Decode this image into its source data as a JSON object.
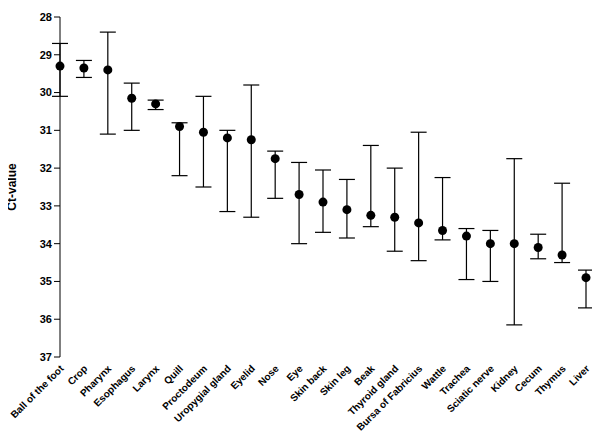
{
  "chart_data": {
    "type": "scatter",
    "y_label": "Ct-value",
    "categories": [
      "Ball of the foot",
      "Crop",
      "Pharynx",
      "Esophagus",
      "Larynx",
      "Quill",
      "Proctodeum",
      "Uropygial gland",
      "Eyelid",
      "Nose",
      "Eye",
      "Skin back",
      "Skin leg",
      "Beak",
      "Thyroid gland",
      "Bursa of Fabricius",
      "Wattle",
      "Trachea",
      "Sciatic nerve",
      "Kidney",
      "Cecum",
      "Thymus",
      "Liver"
    ],
    "values": [
      29.3,
      29.35,
      29.4,
      30.15,
      30.3,
      30.9,
      31.05,
      31.2,
      31.25,
      31.75,
      32.7,
      32.9,
      33.1,
      33.25,
      33.3,
      33.45,
      33.65,
      33.8,
      34.0,
      34.0,
      34.1,
      34.3,
      34.9
    ],
    "error_minus": [
      0.6,
      0.2,
      1.0,
      0.4,
      0.1,
      0.1,
      0.95,
      0.2,
      1.45,
      0.2,
      0.85,
      0.85,
      0.8,
      1.85,
      1.3,
      2.4,
      1.4,
      0.2,
      0.35,
      2.25,
      0.35,
      1.9,
      0.2
    ],
    "error_plus": [
      0.8,
      0.25,
      1.7,
      0.85,
      0.15,
      1.3,
      1.45,
      1.95,
      2.05,
      1.05,
      1.3,
      0.8,
      0.75,
      0.3,
      0.9,
      1.0,
      0.25,
      1.15,
      1.0,
      2.15,
      0.3,
      0.2,
      0.8
    ],
    "color": "#000000",
    "marker": "circle",
    "ylim": [
      37,
      28
    ],
    "yticks": [
      28,
      29,
      30,
      31,
      32,
      33,
      34,
      35,
      36,
      37
    ],
    "grid": false
  }
}
